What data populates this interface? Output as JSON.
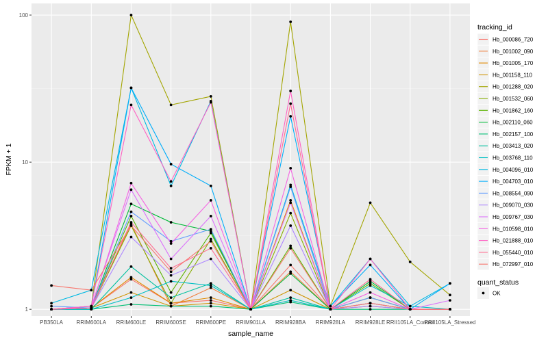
{
  "chart_data": {
    "type": "line",
    "xlabel": "sample_name",
    "ylabel": "FPKM + 1",
    "y_scale": "log10",
    "ylim": [
      0.9,
      120
    ],
    "y_ticks": [
      1,
      10,
      100
    ],
    "y_tick_labels": [
      "1",
      "10",
      "100"
    ],
    "grid": true,
    "legend_placement": "right",
    "categories": [
      "PB350LA",
      "RRIM600LA",
      "RRIM600LE",
      "RRIM600SE",
      "RRIM600PE",
      "RRIM901LA",
      "RRIM928BA",
      "RRIM928LA",
      "RRIM928LE",
      "RRII105LA_Control",
      "RRII105LA_Stressed"
    ],
    "legend_colour": {
      "title": "tracking_id",
      "entries": [
        "Hb_000086_720",
        "Hb_001002_090",
        "Hb_001005_170",
        "Hb_001158_110",
        "Hb_001288_020",
        "Hb_001532_060",
        "Hb_001862_160",
        "Hb_002110_060",
        "Hb_002157_100",
        "Hb_003413_020",
        "Hb_003768_110",
        "Hb_004096_010",
        "Hb_004703_010",
        "Hb_008554_090",
        "Hb_009070_030",
        "Hb_009767_030",
        "Hb_010598_010",
        "Hb_021888_010",
        "Hb_055440_010",
        "Hb_072997_010"
      ]
    },
    "legend_shape": {
      "title": "quant_status",
      "entries": [
        "OK"
      ]
    },
    "series": [
      {
        "name": "Hb_000086_720",
        "color": "#F8766D",
        "values": [
          1.0,
          1.02,
          1.6,
          1.1,
          1.15,
          1.0,
          2.0,
          1.0,
          1.1,
          1.0,
          1.0
        ]
      },
      {
        "name": "Hb_001002_090",
        "color": "#F07F3E",
        "values": [
          1.0,
          1.02,
          3.8,
          1.05,
          1.4,
          1.0,
          1.8,
          1.0,
          1.2,
          1.0,
          1.0
        ]
      },
      {
        "name": "Hb_001005_170",
        "color": "#E18A00",
        "values": [
          1.0,
          1.02,
          1.65,
          1.1,
          1.2,
          1.0,
          5.5,
          1.0,
          1.1,
          1.0,
          1.0
        ]
      },
      {
        "name": "Hb_001158_110",
        "color": "#CF9400",
        "values": [
          1.0,
          1.02,
          1.3,
          1.05,
          1.1,
          1.0,
          1.35,
          1.0,
          1.05,
          1.0,
          1.0
        ]
      },
      {
        "name": "Hb_001288_020",
        "color": "#A3A500",
        "values": [
          1.0,
          1.05,
          100,
          24.5,
          28,
          1.0,
          90,
          1.05,
          5.3,
          2.1,
          1.25
        ]
      },
      {
        "name": "Hb_001532_060",
        "color": "#86AC00",
        "values": [
          1.0,
          1.02,
          3.7,
          1.1,
          3.0,
          1.0,
          4.5,
          1.0,
          1.2,
          1.0,
          1.0
        ]
      },
      {
        "name": "Hb_001862_160",
        "color": "#5BB300",
        "values": [
          1.0,
          1.02,
          4.3,
          1.3,
          3.3,
          1.0,
          2.7,
          1.0,
          1.5,
          1.0,
          1.0
        ]
      },
      {
        "name": "Hb_002110_060",
        "color": "#00BA38",
        "values": [
          1.0,
          1.02,
          5.2,
          3.9,
          3.4,
          1.0,
          1.75,
          1.0,
          1.55,
          1.0,
          1.0
        ]
      },
      {
        "name": "Hb_002157_100",
        "color": "#00BF74",
        "values": [
          1.0,
          1.0,
          1.08,
          1.05,
          1.05,
          1.0,
          1.12,
          1.0,
          1.0,
          1.0,
          1.0
        ]
      },
      {
        "name": "Hb_003413_020",
        "color": "#00C19F",
        "values": [
          1.0,
          1.0,
          1.95,
          1.2,
          1.5,
          1.0,
          1.2,
          1.0,
          1.1,
          1.0,
          1.0
        ]
      },
      {
        "name": "Hb_003768_110",
        "color": "#00BFC4",
        "values": [
          1.0,
          1.0,
          1.2,
          1.55,
          1.45,
          1.0,
          1.15,
          1.0,
          1.45,
          1.05,
          1.0
        ]
      },
      {
        "name": "Hb_004096_010",
        "color": "#00B9E3",
        "values": [
          1.1,
          1.35,
          32,
          6.9,
          26,
          1.0,
          7.0,
          1.05,
          2.2,
          1.05,
          1.5
        ]
      },
      {
        "name": "Hb_004703_010",
        "color": "#00ADFA",
        "values": [
          1.0,
          1.05,
          32,
          9.7,
          6.9,
          1.0,
          20.5,
          1.05,
          2.0,
          1.0,
          1.5
        ]
      },
      {
        "name": "Hb_008554_090",
        "color": "#619CFF",
        "values": [
          1.05,
          1.02,
          4.6,
          2.9,
          3.5,
          1.0,
          6.8,
          1.0,
          1.2,
          1.0,
          1.0
        ]
      },
      {
        "name": "Hb_009070_030",
        "color": "#AE87FF",
        "values": [
          1.0,
          1.02,
          3.1,
          1.7,
          2.2,
          1.0,
          3.7,
          1.0,
          1.05,
          1.0,
          1.0
        ]
      },
      {
        "name": "Hb_009767_030",
        "color": "#DB72FB",
        "values": [
          1.0,
          1.05,
          6.5,
          2.2,
          4.3,
          1.0,
          5.3,
          1.0,
          1.1,
          1.0,
          1.15
        ]
      },
      {
        "name": "Hb_010598_010",
        "color": "#F564E3",
        "values": [
          1.0,
          1.02,
          7.2,
          2.8,
          5.5,
          1.0,
          9.1,
          1.0,
          1.3,
          1.0,
          1.0
        ]
      },
      {
        "name": "Hb_021888_010",
        "color": "#FF61C3",
        "values": [
          1.0,
          1.05,
          24.5,
          7.4,
          25.5,
          1.0,
          30.5,
          1.0,
          2.2,
          1.0,
          1.0
        ]
      },
      {
        "name": "Hb_055440_010",
        "color": "#FF6C91",
        "values": [
          1.0,
          1.02,
          3.9,
          1.9,
          2.6,
          1.0,
          25,
          1.0,
          1.6,
          1.0,
          1.0
        ]
      },
      {
        "name": "Hb_072997_010",
        "color": "#F8766D",
        "values": [
          1.45,
          1.35,
          3.7,
          1.8,
          2.9,
          1.0,
          2.6,
          1.0,
          1.1,
          1.0,
          1.0
        ]
      }
    ]
  }
}
